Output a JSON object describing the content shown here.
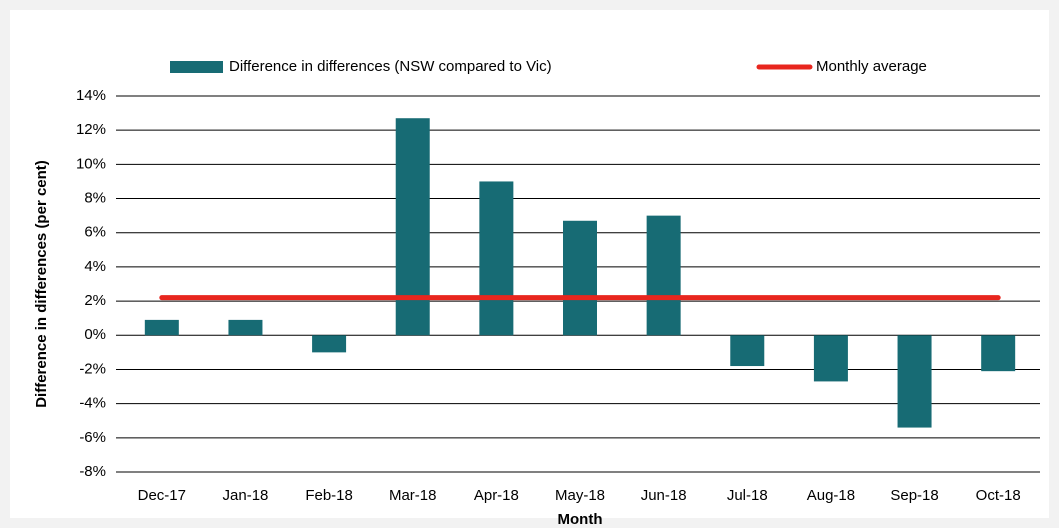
{
  "chart_data": {
    "type": "bar",
    "categories": [
      "Dec-17",
      "Jan-18",
      "Feb-18",
      "Mar-18",
      "Apr-18",
      "May-18",
      "Jun-18",
      "Jul-18",
      "Aug-18",
      "Sep-18",
      "Oct-18"
    ],
    "series": [
      {
        "name": "Difference in differences (NSW compared to Vic)",
        "type": "bar",
        "color": "#176b74",
        "values": [
          0.9,
          0.9,
          -1.0,
          12.7,
          9.0,
          6.7,
          7.0,
          -1.8,
          -2.7,
          -5.4,
          -2.1
        ]
      },
      {
        "name": "Monthly average",
        "type": "line",
        "color": "#e8261e",
        "values": [
          2.2,
          2.2,
          2.2,
          2.2,
          2.2,
          2.2,
          2.2,
          2.2,
          2.2,
          2.2,
          2.2
        ]
      }
    ],
    "ylim": [
      -8,
      14
    ],
    "yticks": [
      {
        "value": -8,
        "label": "-8%"
      },
      {
        "value": -6,
        "label": "-6%"
      },
      {
        "value": -4,
        "label": "-4%"
      },
      {
        "value": -2,
        "label": "-2%"
      },
      {
        "value": 0,
        "label": "0%"
      },
      {
        "value": 2,
        "label": "2%"
      },
      {
        "value": 4,
        "label": "4%"
      },
      {
        "value": 6,
        "label": "6%"
      },
      {
        "value": 8,
        "label": "8%"
      },
      {
        "value": 10,
        "label": "10%"
      },
      {
        "value": 12,
        "label": "12%"
      },
      {
        "value": 14,
        "label": "14%"
      }
    ],
    "xlabel": "Month",
    "ylabel": "Difference in differences (per cent)",
    "grid": true,
    "legend": "top"
  }
}
